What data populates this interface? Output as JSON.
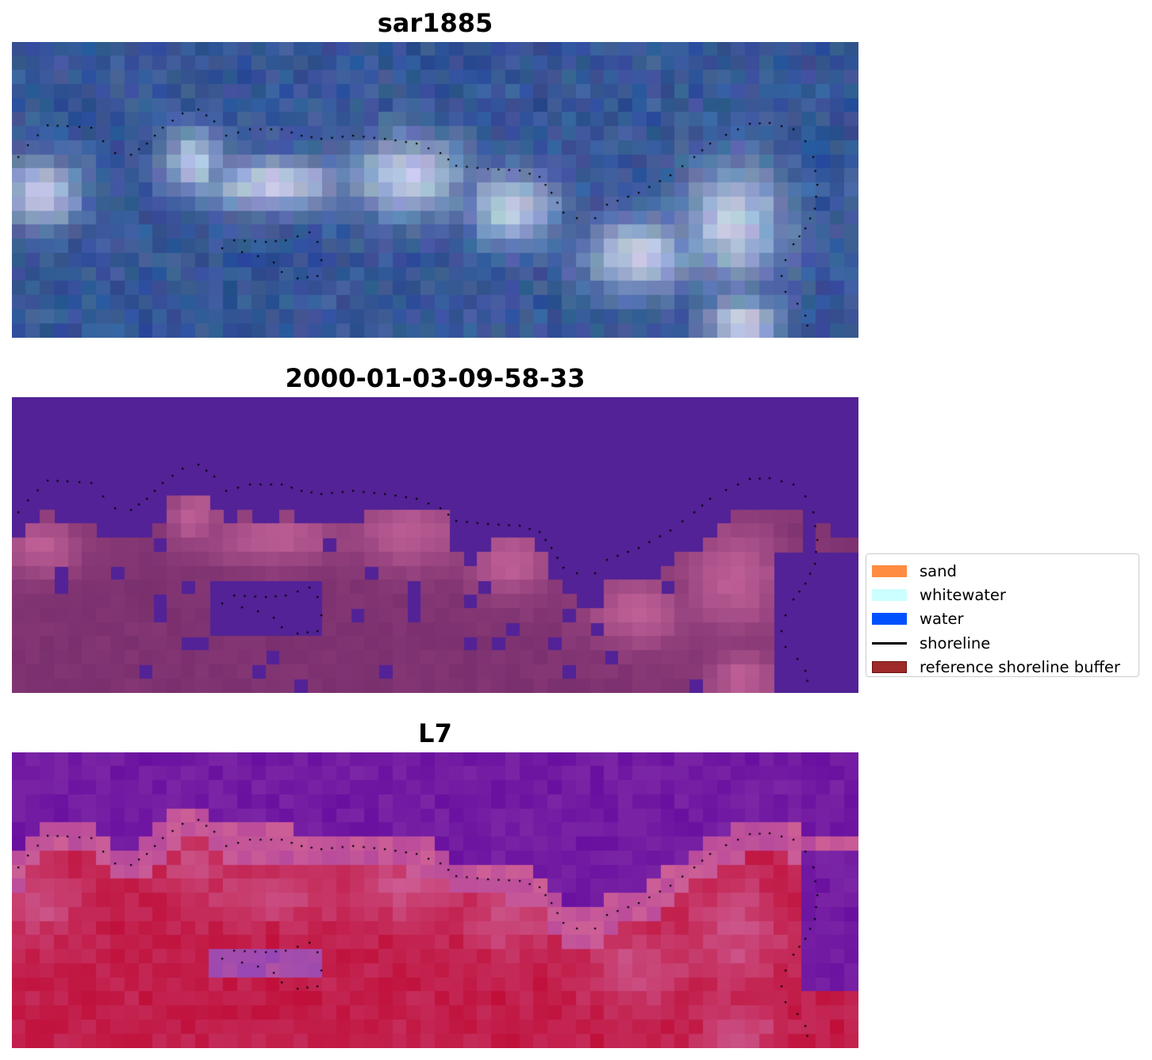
{
  "panels": [
    {
      "title": "sar1885",
      "kind": "rgb"
    },
    {
      "title": "2000-01-03-09-58-33",
      "kind": "classified"
    },
    {
      "title": "L7",
      "kind": "index"
    }
  ],
  "legend": {
    "items": [
      {
        "label": "sand",
        "color": "#ff8c40",
        "shape": "patch"
      },
      {
        "label": "whitewater",
        "color": "#ccffff",
        "shape": "patch"
      },
      {
        "label": "water",
        "color": "#0052ff",
        "shape": "patch"
      },
      {
        "label": "shoreline",
        "color": "#000000",
        "shape": "line"
      },
      {
        "label": "reference shoreline buffer",
        "color": "#9e2a2a",
        "border": "#6e1010",
        "shape": "patch"
      }
    ]
  },
  "colors": {
    "classified_background": "#522296",
    "classified_land": "#7a2f6e",
    "index_high": "#c0103a",
    "index_low": "#6a10a0",
    "rgb_base": "#2d4f92",
    "shoreline_dots": "#000000"
  }
}
